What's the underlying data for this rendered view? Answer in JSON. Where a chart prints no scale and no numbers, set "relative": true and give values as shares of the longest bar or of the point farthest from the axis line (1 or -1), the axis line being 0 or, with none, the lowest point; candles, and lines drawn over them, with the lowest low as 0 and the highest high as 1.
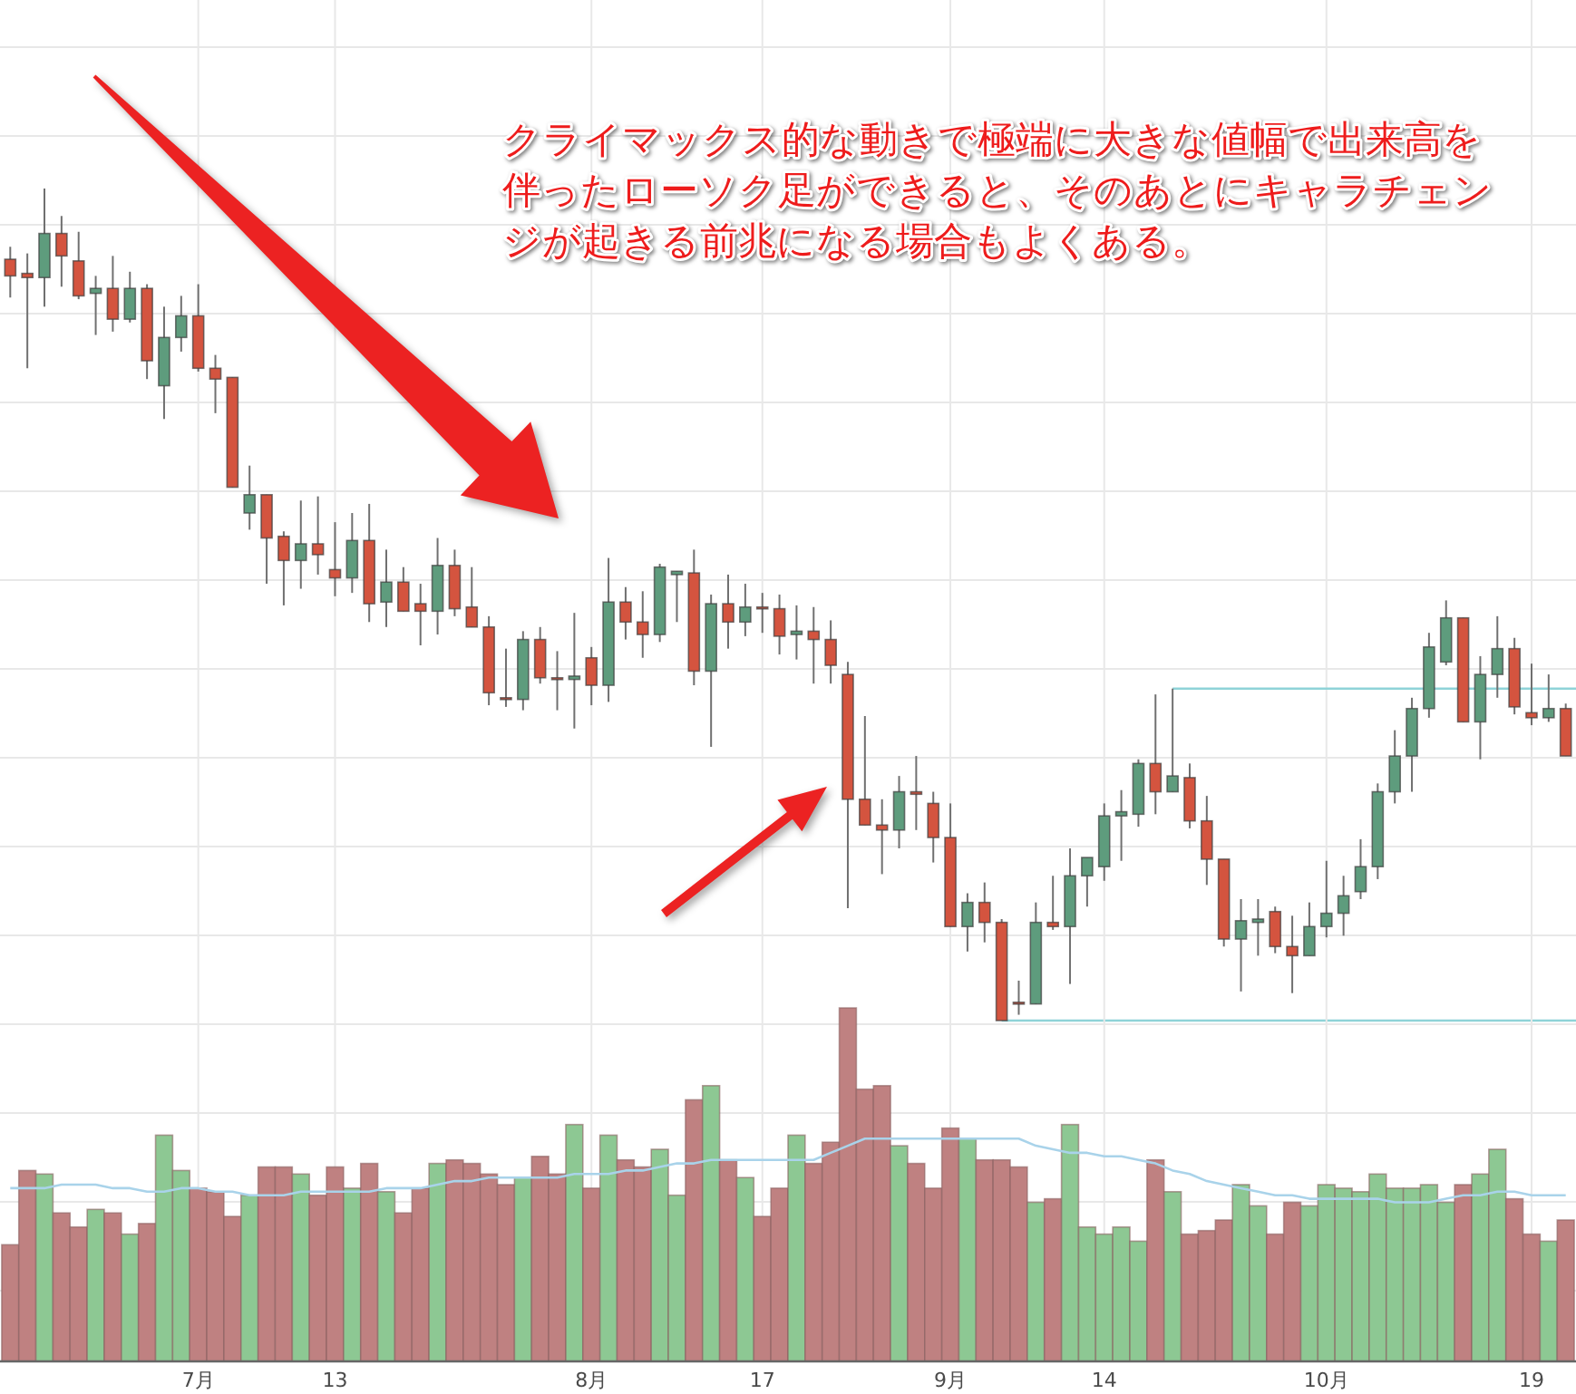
{
  "chart_data": [
    {
      "type": "candlestick",
      "annotations": [
        "クライマックス的な動きで極端に大きな値幅で出来高を伴ったローソク足ができると、そのあとにキャラチェンジが起きる前兆になる場合もよくある。"
      ],
      "relative": true,
      "grid": true,
      "tick_labels": false,
      "categories": [
        null,
        null,
        null,
        null,
        null,
        null,
        null,
        null,
        null,
        null,
        null,
        null,
        null,
        null,
        null,
        null,
        null,
        null,
        null,
        null,
        null,
        null,
        null,
        null,
        null,
        null,
        null,
        null,
        null,
        null,
        null,
        null,
        null,
        null,
        null,
        null,
        null,
        null,
        null,
        null,
        null,
        null,
        null,
        null,
        null,
        null,
        null,
        null,
        null,
        null,
        null,
        null,
        null,
        null,
        null,
        null,
        null,
        null,
        null,
        null,
        null,
        null,
        null,
        null,
        null,
        null,
        null,
        null,
        null,
        null,
        null,
        null,
        null,
        null,
        null,
        null,
        null,
        null,
        null,
        null,
        null,
        null,
        null,
        null,
        null,
        null,
        null,
        null,
        null,
        null,
        null,
        null
      ],
      "ohlc": [
        [
          0.915,
          0.93,
          0.869,
          0.895
        ],
        [
          0.898,
          0.922,
          0.784,
          0.893
        ],
        [
          0.893,
          1,
          0.858,
          0.946
        ],
        [
          0.946,
          0.967,
          0.882,
          0.919
        ],
        [
          0.913,
          0.948,
          0.867,
          0.871
        ],
        [
          0.874,
          0.895,
          0.824,
          0.88
        ],
        [
          0.88,
          0.919,
          0.828,
          0.843
        ],
        [
          0.843,
          0.9,
          0.839,
          0.88
        ],
        [
          0.88,
          0.885,
          0.771,
          0.793
        ],
        [
          0.763,
          0.858,
          0.723,
          0.821
        ],
        [
          0.821,
          0.871,
          0.804,
          0.847
        ],
        [
          0.847,
          0.885,
          0.78,
          0.784
        ],
        [
          0.784,
          0.8,
          0.73,
          0.771
        ],
        [
          0.773,
          0.773,
          0.641,
          0.641
        ],
        [
          0.61,
          0.667,
          0.59,
          0.632
        ],
        [
          0.632,
          0.632,
          0.525,
          0.58
        ],
        [
          0.582,
          0.588,
          0.499,
          0.553
        ],
        [
          0.553,
          0.625,
          0.519,
          0.573
        ],
        [
          0.573,
          0.63,
          0.536,
          0.56
        ],
        [
          0.542,
          0.599,
          0.51,
          0.532
        ],
        [
          0.532,
          0.61,
          0.514,
          0.577
        ],
        [
          0.577,
          0.621,
          0.479,
          0.501
        ],
        [
          0.503,
          0.566,
          0.473,
          0.527
        ],
        [
          0.527,
          0.545,
          0.492,
          0.492
        ],
        [
          0.501,
          0.525,
          0.451,
          0.492
        ],
        [
          0.492,
          0.58,
          0.464,
          0.547
        ],
        [
          0.547,
          0.566,
          0.486,
          0.495
        ],
        [
          0.497,
          0.545,
          0.473,
          0.473
        ],
        [
          0.473,
          0.486,
          0.379,
          0.394
        ],
        [
          0.388,
          0.447,
          0.377,
          0.386
        ],
        [
          0.386,
          0.468,
          0.373,
          0.458
        ],
        [
          0.458,
          0.473,
          0.405,
          0.412
        ],
        [
          0.412,
          0.444,
          0.373,
          0.41
        ],
        [
          0.41,
          0.49,
          0.351,
          0.414
        ],
        [
          0.436,
          0.449,
          0.379,
          0.403
        ],
        [
          0.403,
          0.556,
          0.383,
          0.503
        ],
        [
          0.503,
          0.521,
          0.458,
          0.479
        ],
        [
          0.479,
          0.516,
          0.436,
          0.464
        ],
        [
          0.464,
          0.549,
          0.455,
          0.545
        ],
        [
          0.536,
          0.54,
          0.479,
          0.54
        ],
        [
          0.538,
          0.566,
          0.403,
          0.42
        ],
        [
          0.42,
          0.512,
          0.329,
          0.501
        ],
        [
          0.501,
          0.536,
          0.447,
          0.479
        ],
        [
          0.479,
          0.525,
          0.462,
          0.497
        ],
        [
          0.497,
          0.514,
          0.466,
          0.495
        ],
        [
          0.495,
          0.512,
          0.44,
          0.462
        ],
        [
          0.464,
          0.499,
          0.434,
          0.468
        ],
        [
          0.468,
          0.497,
          0.405,
          0.458
        ],
        [
          0.458,
          0.481,
          0.405,
          0.427
        ],
        [
          0.416,
          0.431,
          0.135,
          0.266
        ],
        [
          0.266,
          0.366,
          0.235,
          0.235
        ],
        [
          0.235,
          0.266,
          0.176,
          0.229
        ],
        [
          0.229,
          0.294,
          0.207,
          0.275
        ],
        [
          0.275,
          0.318,
          0.229,
          0.272
        ],
        [
          0.261,
          0.275,
          0.19,
          0.22
        ],
        [
          0.22,
          0.261,
          0.113,
          0.113
        ],
        [
          0.113,
          0.153,
          0.083,
          0.142
        ],
        [
          0.142,
          0.166,
          0.094,
          0.118
        ],
        [
          0.118,
          0.122,
          0,
          0
        ],
        [
          0.022,
          0.048,
          0.007,
          0.02
        ],
        [
          0.02,
          0.142,
          0.02,
          0.118
        ],
        [
          0.118,
          0.174,
          0.109,
          0.113
        ],
        [
          0.113,
          0.207,
          0.044,
          0.174
        ],
        [
          0.174,
          0.196,
          0.137,
          0.196
        ],
        [
          0.185,
          0.261,
          0.168,
          0.246
        ],
        [
          0.246,
          0.277,
          0.192,
          0.251
        ],
        [
          0.248,
          0.314,
          0.233,
          0.309
        ],
        [
          0.309,
          0.392,
          0.248,
          0.275
        ],
        [
          0.275,
          0.399,
          0.275,
          0.294
        ],
        [
          0.292,
          0.309,
          0.231,
          0.24
        ],
        [
          0.24,
          0.27,
          0.163,
          0.194
        ],
        [
          0.194,
          0.194,
          0.089,
          0.098
        ],
        [
          0.098,
          0.146,
          0.035,
          0.12
        ],
        [
          0.118,
          0.146,
          0.078,
          0.122
        ],
        [
          0.131,
          0.137,
          0.081,
          0.089
        ],
        [
          0.089,
          0.126,
          0.033,
          0.078
        ],
        [
          0.078,
          0.142,
          0.078,
          0.113
        ],
        [
          0.113,
          0.192,
          0.1,
          0.129
        ],
        [
          0.129,
          0.174,
          0.102,
          0.15
        ],
        [
          0.155,
          0.218,
          0.146,
          0.185
        ],
        [
          0.185,
          0.285,
          0.17,
          0.275
        ],
        [
          0.275,
          0.349,
          0.261,
          0.318
        ],
        [
          0.318,
          0.388,
          0.275,
          0.375
        ],
        [
          0.375,
          0.466,
          0.364,
          0.449
        ],
        [
          0.431,
          0.505,
          0.427,
          0.484
        ],
        [
          0.484,
          0.484,
          0.359,
          0.359
        ],
        [
          0.359,
          0.438,
          0.314,
          0.416
        ],
        [
          0.416,
          0.486,
          0.388,
          0.447
        ],
        [
          0.447,
          0.46,
          0.368,
          0.377
        ],
        [
          0.37,
          0.429,
          0.355,
          0.364
        ],
        [
          0.364,
          0.416,
          0.359,
          0.375
        ],
        [
          0.375,
          0.381,
          0.318,
          0.318
        ]
      ],
      "colors": [
        "#d4543f",
        "#d4543f",
        "#5e9c7d",
        "#d4543f",
        "#d4543f",
        "#5e9c7d",
        "#d4543f",
        "#5e9c7d",
        "#d4543f",
        "#5e9c7d",
        "#5e9c7d",
        "#d4543f",
        "#d4543f",
        "#d4543f",
        "#5e9c7d",
        "#d4543f",
        "#d4543f",
        "#5e9c7d",
        "#d4543f",
        "#d4543f",
        "#5e9c7d",
        "#d4543f",
        "#5e9c7d",
        "#d4543f",
        "#d4543f",
        "#5e9c7d",
        "#d4543f",
        "#d4543f",
        "#d4543f",
        "#d4543f",
        "#5e9c7d",
        "#d4543f",
        "#d4543f",
        "#5e9c7d",
        "#d4543f",
        "#5e9c7d",
        "#d4543f",
        "#d4543f",
        "#5e9c7d",
        "#5e9c7d",
        "#d4543f",
        "#5e9c7d",
        "#d4543f",
        "#5e9c7d",
        "#d4543f",
        "#d4543f",
        "#5e9c7d",
        "#d4543f",
        "#d4543f",
        "#d4543f",
        "#d4543f",
        "#d4543f",
        "#5e9c7d",
        "#d4543f",
        "#d4543f",
        "#d4543f",
        "#5e9c7d",
        "#d4543f",
        "#d4543f",
        "#d4543f",
        "#5e9c7d",
        "#d4543f",
        "#5e9c7d",
        "#5e9c7d",
        "#5e9c7d",
        "#5e9c7d",
        "#5e9c7d",
        "#d4543f",
        "#5e9c7d",
        "#d4543f",
        "#d4543f",
        "#d4543f",
        "#5e9c7d",
        "#5e9c7d",
        "#d4543f",
        "#d4543f",
        "#5e9c7d",
        "#5e9c7d",
        "#5e9c7d",
        "#5e9c7d",
        "#5e9c7d",
        "#5e9c7d",
        "#5e9c7d",
        "#5e9c7d",
        "#5e9c7d",
        "#d4543f",
        "#5e9c7d",
        "#5e9c7d",
        "#d4543f",
        "#d4543f",
        "#5e9c7d",
        "#d4543f"
      ],
      "ref_lines": [
        {
          "axis": "y",
          "value": 0.399,
          "color": "#8fd3d8"
        },
        {
          "axis": "y",
          "value": 0,
          "color": "#8fd3d8"
        }
      ]
    },
    {
      "type": "bar",
      "relative": true,
      "grid": true,
      "tick_labels": "x",
      "categories": [
        null,
        null,
        null,
        null,
        null,
        null,
        null,
        null,
        null,
        null,
        null,
        "7月",
        null,
        null,
        null,
        null,
        null,
        null,
        null,
        "13",
        null,
        null,
        null,
        null,
        null,
        null,
        null,
        null,
        null,
        null,
        null,
        null,
        null,
        null,
        "8月",
        null,
        null,
        null,
        null,
        null,
        null,
        null,
        null,
        null,
        "17",
        null,
        null,
        null,
        null,
        null,
        null,
        null,
        null,
        null,
        null,
        "9月",
        null,
        null,
        null,
        null,
        null,
        null,
        null,
        null,
        "14",
        null,
        null,
        null,
        null,
        null,
        null,
        null,
        null,
        null,
        null,
        null,
        null,
        "10月",
        null,
        null,
        null,
        null,
        null,
        null,
        null,
        null,
        null,
        null,
        null,
        "19",
        null,
        null
      ],
      "series": [
        {
          "type": "bar",
          "values": [
            0.33,
            0.54,
            0.53,
            0.42,
            0.38,
            0.43,
            0.42,
            0.36,
            0.39,
            0.64,
            0.54,
            0.49,
            0.48,
            0.41,
            0.47,
            0.55,
            0.55,
            0.53,
            0.47,
            0.55,
            0.49,
            0.56,
            0.48,
            0.42,
            0.49,
            0.56,
            0.57,
            0.56,
            0.53,
            0.5,
            0.52,
            0.58,
            0.53,
            0.67,
            0.49,
            0.64,
            0.57,
            0.55,
            0.6,
            0.47,
            0.74,
            0.78,
            0.57,
            0.52,
            0.41,
            0.49,
            0.64,
            0.56,
            0.62,
            1,
            0.77,
            0.78,
            0.61,
            0.56,
            0.49,
            0.66,
            0.63,
            0.57,
            0.57,
            0.55,
            0.45,
            0.46,
            0.67,
            0.38,
            0.36,
            0.38,
            0.34,
            0.57,
            0.48,
            0.36,
            0.37,
            0.4,
            0.5,
            0.44,
            0.36,
            0.45,
            0.44,
            0.5,
            0.49,
            0.48,
            0.53,
            0.49,
            0.49,
            0.5,
            0.45,
            0.5,
            0.53,
            0.6,
            0.46,
            0.36,
            0.34,
            0.4
          ],
          "colors": [
            "#bf8181",
            "#bf8181",
            "#8dc893",
            "#bf8181",
            "#bf8181",
            "#8dc893",
            "#bf8181",
            "#8dc893",
            "#bf8181",
            "#8dc893",
            "#8dc893",
            "#bf8181",
            "#bf8181",
            "#bf8181",
            "#8dc893",
            "#bf8181",
            "#bf8181",
            "#8dc893",
            "#bf8181",
            "#bf8181",
            "#8dc893",
            "#bf8181",
            "#8dc893",
            "#bf8181",
            "#bf8181",
            "#8dc893",
            "#bf8181",
            "#bf8181",
            "#bf8181",
            "#bf8181",
            "#8dc893",
            "#bf8181",
            "#bf8181",
            "#8dc893",
            "#bf8181",
            "#8dc893",
            "#bf8181",
            "#bf8181",
            "#8dc893",
            "#8dc893",
            "#bf8181",
            "#8dc893",
            "#bf8181",
            "#8dc893",
            "#bf8181",
            "#bf8181",
            "#8dc893",
            "#bf8181",
            "#bf8181",
            "#bf8181",
            "#bf8181",
            "#bf8181",
            "#8dc893",
            "#bf8181",
            "#bf8181",
            "#bf8181",
            "#8dc893",
            "#bf8181",
            "#bf8181",
            "#bf8181",
            "#8dc893",
            "#bf8181",
            "#8dc893",
            "#8dc893",
            "#8dc893",
            "#8dc893",
            "#8dc893",
            "#bf8181",
            "#8dc893",
            "#bf8181",
            "#bf8181",
            "#bf8181",
            "#8dc893",
            "#8dc893",
            "#bf8181",
            "#bf8181",
            "#8dc893",
            "#8dc893",
            "#8dc893",
            "#8dc893",
            "#8dc893",
            "#8dc893",
            "#8dc893",
            "#8dc893",
            "#8dc893",
            "#bf8181",
            "#8dc893",
            "#8dc893",
            "#bf8181",
            "#bf8181",
            "#8dc893",
            "#bf8181"
          ]
        },
        {
          "type": "line",
          "color": "#a9d3ea",
          "values": [
            0.49,
            0.49,
            0.49,
            0.5,
            0.5,
            0.5,
            0.49,
            0.49,
            0.48,
            0.48,
            0.49,
            0.49,
            0.48,
            0.48,
            0.47,
            0.47,
            0.47,
            0.48,
            0.48,
            0.48,
            0.48,
            0.48,
            0.49,
            0.49,
            0.49,
            0.5,
            0.51,
            0.51,
            0.52,
            0.52,
            0.52,
            0.52,
            0.52,
            0.53,
            0.53,
            0.53,
            0.54,
            0.54,
            0.55,
            0.56,
            0.56,
            0.57,
            0.57,
            0.57,
            0.57,
            0.57,
            0.57,
            0.57,
            0.59,
            0.61,
            0.63,
            0.63,
            0.63,
            0.63,
            0.63,
            0.63,
            0.63,
            0.63,
            0.63,
            0.63,
            0.61,
            0.6,
            0.59,
            0.59,
            0.58,
            0.58,
            0.57,
            0.56,
            0.54,
            0.53,
            0.51,
            0.5,
            0.49,
            0.48,
            0.47,
            0.47,
            0.46,
            0.46,
            0.46,
            0.46,
            0.46,
            0.45,
            0.45,
            0.45,
            0.46,
            0.47,
            0.47,
            0.48,
            0.48,
            0.47,
            0.47,
            0.47
          ]
        }
      ]
    }
  ]
}
